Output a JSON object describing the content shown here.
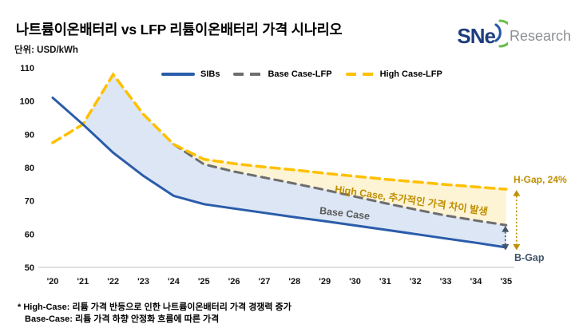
{
  "header": {
    "title": "나트륨이온배터리 vs LFP 리튬이온배터리 가격 시나리오",
    "unit_label": "단위: USD/kWh",
    "logo_text": "SNe",
    "logo_suffix": "Research"
  },
  "legend": {
    "items": [
      {
        "label": "SIBs",
        "color": "#2a5caa",
        "style": "solid"
      },
      {
        "label": "Base Case-LFP",
        "color": "#6e6e6e",
        "style": "dashed"
      },
      {
        "label": "High Case-LFP",
        "color": "#ffc000",
        "style": "dashed"
      }
    ]
  },
  "annotations": {
    "high_case": "High Case, 추가적인 가격 차이 발생",
    "base_case": "Base Case",
    "h_gap": "H-Gap, 24%",
    "b_gap": "B-Gap",
    "high_case_color": "#bf8f00",
    "base_case_color": "#595959",
    "h_gap_color": "#bf9000",
    "b_gap_color": "#44546a"
  },
  "footnotes": {
    "line1": "* High-Case: 리튬 가격 반등으로 인한 나트륨이온배터리 가격 경쟁력 증가",
    "line2": "Base-Case: 리튬 가격 하향 안정화 흐름에 따른 가격"
  },
  "chart_data": {
    "type": "line",
    "title": "나트륨이온배터리 vs LFP 리튬이온배터리 가격 시나리오",
    "ylabel": "USD/kWh",
    "xlabel": "",
    "ylim": [
      50,
      110
    ],
    "ytick_step": 10,
    "grid": false,
    "legend_position": "top",
    "categories": [
      "'20",
      "'21",
      "'22",
      "'23",
      "'24",
      "'25",
      "'26",
      "'27",
      "'28",
      "'29",
      "'30",
      "'31",
      "'32",
      "'33",
      "'34",
      "'35"
    ],
    "series": [
      {
        "name": "SIBs",
        "color": "#2a5caa",
        "dash": null,
        "width": 3,
        "start_index": 0,
        "values": [
          101,
          93,
          84.5,
          77.5,
          71.5,
          69,
          67.7,
          66.4,
          65.1,
          63.9,
          62.6,
          61.3,
          60,
          58.7,
          57.4,
          56
        ]
      },
      {
        "name": "Base Case-LFP",
        "color": "#6e6e6e",
        "dash": "10 7",
        "width": 3,
        "start_index": 4,
        "values": [
          87,
          81,
          78.8,
          77,
          75.2,
          73.3,
          71.3,
          69.3,
          67.4,
          65.6,
          64.1,
          62.7
        ]
      },
      {
        "name": "High Case-LFP",
        "color": "#ffc000",
        "dash": "11 7",
        "width": 3.5,
        "start_index": 0,
        "values": [
          87.5,
          93,
          108,
          96,
          87,
          82.5,
          81.2,
          80.2,
          79.3,
          78.3,
          77.4,
          76.5,
          75.7,
          74.9,
          74.2,
          73.5
        ]
      }
    ],
    "fills": [
      {
        "name": "sib-vs-lfp-gap",
        "color": "#dce6f4"
      },
      {
        "name": "base-vs-high-gap",
        "color": "#fdf3d5"
      }
    ],
    "gap_arrows": [
      {
        "name": "h-gap",
        "color": "#bf9000",
        "from_series": 2,
        "to_series": 0,
        "x_offset": 13
      },
      {
        "name": "b-gap",
        "color": "#44546a",
        "from_series": 1,
        "to_series": 0,
        "x_offset": -1
      }
    ]
  }
}
